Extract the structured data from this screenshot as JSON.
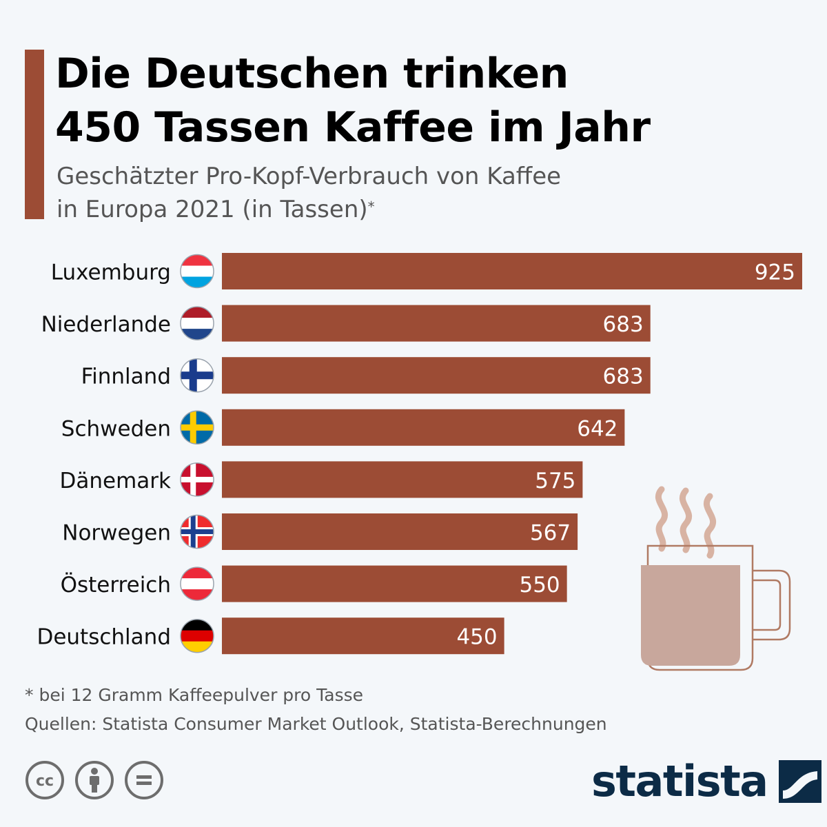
{
  "header": {
    "title_line1": "Die Deutschen trinken",
    "title_line2": "450 Tassen Kaffee im Jahr",
    "subtitle_line1": "Geschätzter Pro-Kopf-Verbrauch von Kaffee",
    "subtitle_line2": "in Europa 2021 (in Tassen)",
    "subtitle_marker": "*"
  },
  "chart_data": {
    "type": "bar",
    "orientation": "horizontal",
    "title": "Die Deutschen trinken 450 Tassen Kaffee im Jahr",
    "subtitle": "Geschätzter Pro-Kopf-Verbrauch von Kaffee in Europa 2021 (in Tassen)*",
    "categories": [
      "Luxemburg",
      "Niederlande",
      "Finnland",
      "Schweden",
      "Dänemark",
      "Norwegen",
      "Österreich",
      "Deutschland"
    ],
    "values": [
      925,
      683,
      683,
      642,
      575,
      567,
      550,
      450
    ],
    "flags": [
      "luxembourg-flag-icon",
      "netherlands-flag-icon",
      "finland-flag-icon",
      "sweden-flag-icon",
      "denmark-flag-icon",
      "norway-flag-icon",
      "austria-flag-icon",
      "germany-flag-icon"
    ],
    "xlim": [
      0,
      925
    ],
    "bar_color": "#9c4c35",
    "label_color": "#ffffff",
    "xlabel": "",
    "ylabel": ""
  },
  "illustration": {
    "icon": "coffee-mug-icon",
    "color": "#b07a63"
  },
  "footer": {
    "note": "* bei 12 Gramm Kaffeepulver pro Tasse",
    "sources": "Quellen: Statista Consumer Market Outlook, Statista-Berechnungen",
    "license_icons": [
      "cc-icon",
      "attribution-icon",
      "no-derivatives-icon"
    ],
    "brand": "statista",
    "brand_color": "#0c2b46"
  }
}
